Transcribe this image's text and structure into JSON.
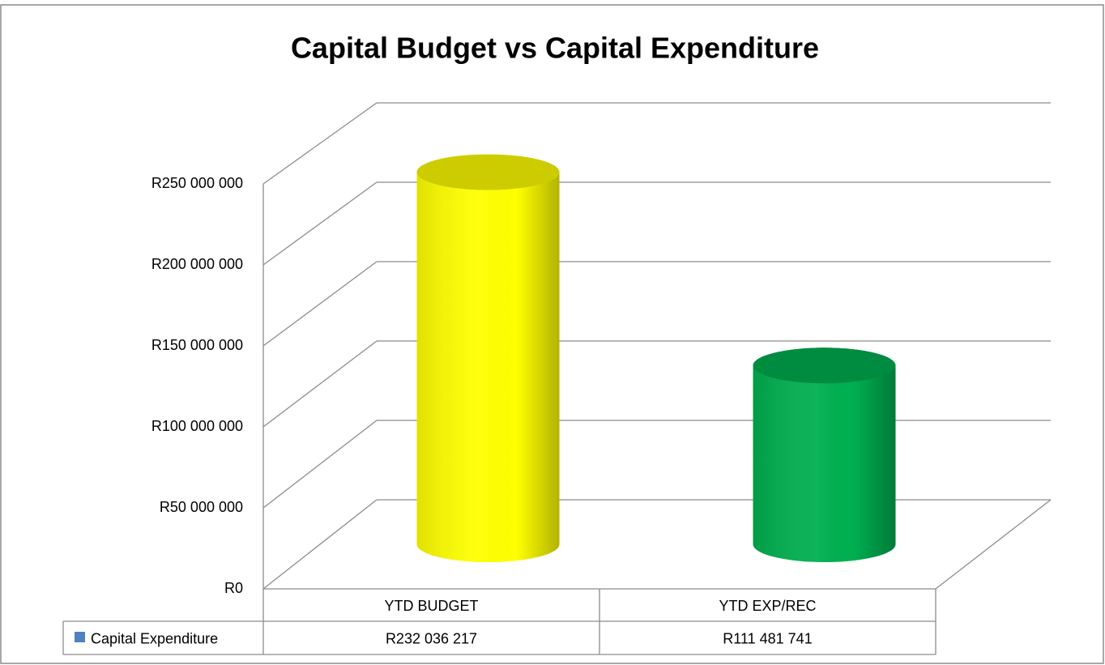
{
  "chart_data": {
    "type": "bar3d",
    "title": "Capital Budget vs Capital Expenditure",
    "categories": [
      "YTD BUDGET",
      "YTD EXP/REC"
    ],
    "series": [
      {
        "name": "Capital Expenditure",
        "color": "#4f81bd",
        "colors": [
          "#ffff00",
          "#00b050"
        ],
        "values": [
          232036217,
          111481741
        ],
        "value_labels": [
          "R232 036 217",
          "R111 481 741"
        ]
      }
    ],
    "ylim": [
      0,
      250000000
    ],
    "yticks": [
      {
        "value": 0,
        "label": "R0"
      },
      {
        "value": 50000000,
        "label": "R50 000 000"
      },
      {
        "value": 100000000,
        "label": "R100 000 000"
      },
      {
        "value": 150000000,
        "label": "R150 000 000"
      },
      {
        "value": 200000000,
        "label": "R200 000 000"
      },
      {
        "value": 250000000,
        "label": "R250 000 000"
      }
    ],
    "grid": true
  }
}
